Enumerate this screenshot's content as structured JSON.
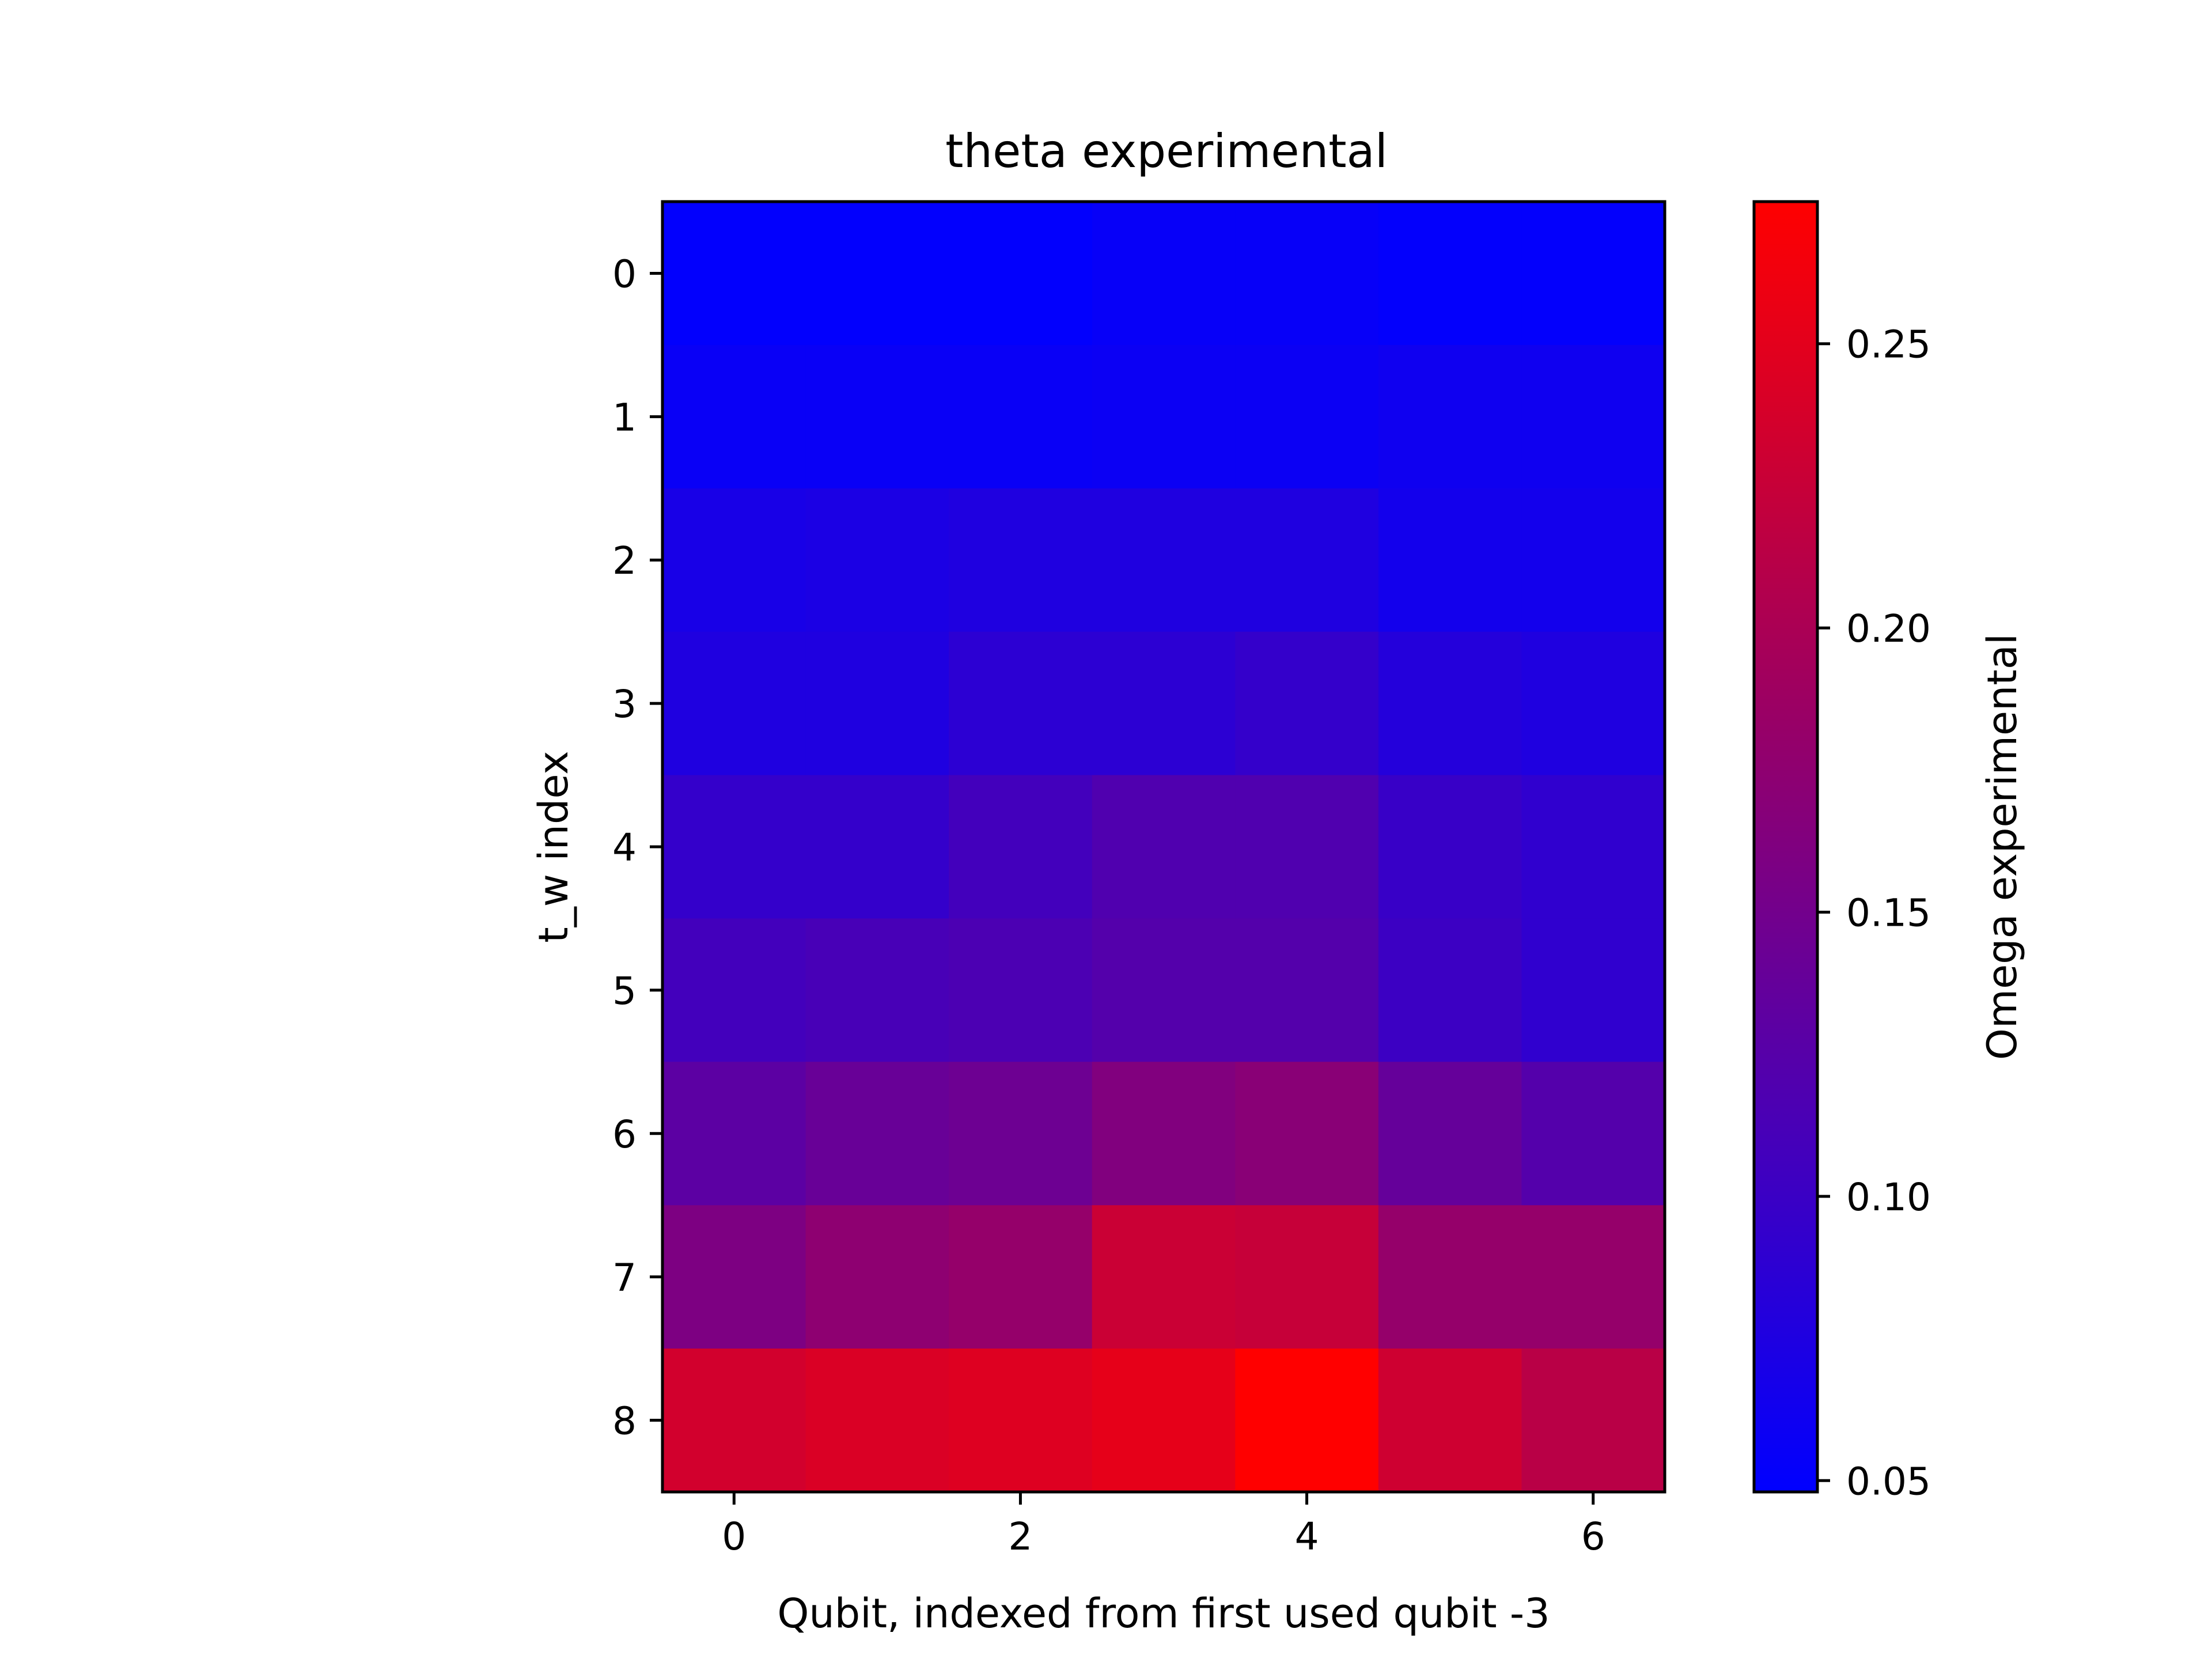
{
  "chart_data": {
    "type": "heatmap",
    "title": "theta experimental",
    "xlabel": "Qubit, indexed from first used qubit -3",
    "ylabel": "t_w index",
    "x_categories": [
      0,
      1,
      2,
      3,
      4,
      5,
      6
    ],
    "y_categories": [
      0,
      1,
      2,
      3,
      4,
      5,
      6,
      7,
      8
    ],
    "x_ticks": [
      0,
      2,
      4,
      6
    ],
    "y_ticks": [
      0,
      1,
      2,
      3,
      4,
      5,
      6,
      7,
      8
    ],
    "values": [
      [
        0.05,
        0.05,
        0.05,
        0.054,
        0.054,
        0.051,
        0.051
      ],
      [
        0.056,
        0.056,
        0.056,
        0.058,
        0.058,
        0.061,
        0.061
      ],
      [
        0.069,
        0.072,
        0.076,
        0.076,
        0.076,
        0.065,
        0.065
      ],
      [
        0.076,
        0.076,
        0.087,
        0.087,
        0.094,
        0.08,
        0.076
      ],
      [
        0.094,
        0.094,
        0.108,
        0.119,
        0.119,
        0.098,
        0.091
      ],
      [
        0.108,
        0.112,
        0.116,
        0.123,
        0.123,
        0.101,
        0.091
      ],
      [
        0.13,
        0.141,
        0.145,
        0.163,
        0.17,
        0.138,
        0.123
      ],
      [
        0.159,
        0.174,
        0.181,
        0.228,
        0.224,
        0.181,
        0.181
      ],
      [
        0.235,
        0.242,
        0.246,
        0.253,
        0.275,
        0.231,
        0.213
      ]
    ],
    "colorbar": {
      "label": "Omega experimental",
      "range": [
        0.048,
        0.275
      ],
      "ticks": [
        0.05,
        0.1,
        0.15,
        0.2,
        0.25
      ],
      "tick_labels": [
        "0.05",
        "0.10",
        "0.15",
        "0.20",
        "0.25"
      ],
      "colormap": [
        "#0000ff",
        "#ff0000"
      ]
    },
    "grid": false
  }
}
